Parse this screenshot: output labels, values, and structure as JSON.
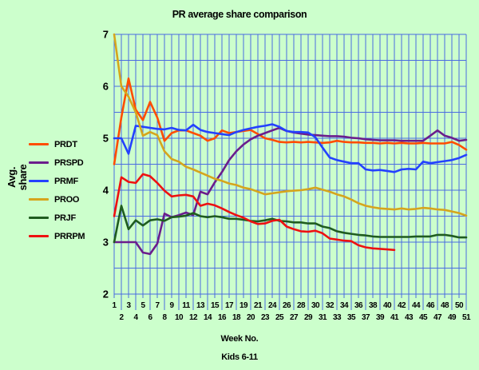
{
  "page": {
    "background": "#ccffcc"
  },
  "chart_data": {
    "type": "line",
    "title": "PR average share comparison",
    "xlabel": "Week No.",
    "ylabel": "Avg. share",
    "ylabel_lines": [
      "Avg.",
      "share"
    ],
    "caption": "Kids 6-11",
    "x_ticks": [
      1,
      2,
      3,
      4,
      5,
      6,
      7,
      8,
      9,
      10,
      11,
      12,
      13,
      14,
      15,
      16,
      17,
      18,
      19,
      20,
      21,
      23,
      24,
      25,
      26,
      27,
      28,
      29,
      30,
      31,
      32,
      33,
      34,
      35,
      36,
      37,
      38,
      39,
      40,
      41,
      42,
      43,
      44,
      45,
      46,
      47,
      48,
      49,
      50,
      51
    ],
    "x_note": "week 22 absent from axis; labels staggered in two rows",
    "y_ticks": [
      2,
      3,
      4,
      5,
      6,
      7
    ],
    "ylim": [
      2,
      7
    ],
    "y_minor_step": 0.5,
    "grid": "on",
    "grid_color": "#4a6be0",
    "text_color": "#000000",
    "legend_position": "left",
    "series": [
      {
        "name": "PRDT",
        "color": "#ff4d00",
        "values": [
          4.5,
          5.4,
          6.15,
          5.55,
          5.35,
          5.7,
          5.4,
          4.95,
          5.1,
          5.15,
          5.15,
          5.1,
          5.05,
          4.95,
          5.0,
          5.15,
          5.1,
          5.12,
          5.14,
          5.16,
          5.08,
          5.0,
          4.97,
          4.93,
          4.92,
          4.93,
          4.92,
          4.93,
          4.92,
          4.91,
          4.92,
          4.95,
          4.93,
          4.92,
          4.92,
          4.91,
          4.91,
          4.9,
          4.91,
          4.9,
          4.91,
          4.9,
          4.9,
          4.91,
          4.9,
          4.9,
          4.9,
          4.93,
          4.87,
          4.78
        ]
      },
      {
        "name": "PRSPD",
        "color": "#6b1d8c",
        "values": [
          3.0,
          3.0,
          3.0,
          3.0,
          2.8,
          2.77,
          2.97,
          3.55,
          3.48,
          3.52,
          3.57,
          3.52,
          3.97,
          3.92,
          4.15,
          4.35,
          4.58,
          4.75,
          4.88,
          4.98,
          5.05,
          5.1,
          5.15,
          5.2,
          5.14,
          5.11,
          5.09,
          5.07,
          5.06,
          5.05,
          5.04,
          5.04,
          5.03,
          5.01,
          5.0,
          4.98,
          4.97,
          4.96,
          4.96,
          4.96,
          4.95,
          4.95,
          4.95,
          4.95,
          5.05,
          5.15,
          5.05,
          5.01,
          4.95,
          4.97
        ]
      },
      {
        "name": "PRMF",
        "color": "#2441ff",
        "values": [
          5.0,
          5.0,
          4.7,
          5.24,
          5.22,
          5.2,
          5.18,
          5.17,
          5.2,
          5.16,
          5.15,
          5.26,
          5.16,
          5.12,
          5.1,
          5.08,
          5.06,
          5.12,
          5.16,
          5.19,
          5.22,
          5.24,
          5.27,
          5.22,
          5.14,
          5.12,
          5.12,
          5.11,
          5.02,
          4.82,
          4.63,
          4.58,
          4.55,
          4.52,
          4.52,
          4.4,
          4.38,
          4.39,
          4.37,
          4.35,
          4.4,
          4.41,
          4.4,
          4.55,
          4.52,
          4.54,
          4.56,
          4.58,
          4.62,
          4.68
        ]
      },
      {
        "name": "PROO",
        "color": "#d6a51c",
        "values": [
          7.0,
          6.0,
          5.8,
          5.5,
          5.05,
          5.12,
          5.06,
          4.75,
          4.6,
          4.55,
          4.45,
          4.4,
          4.34,
          4.28,
          4.22,
          4.18,
          4.13,
          4.1,
          4.05,
          4.02,
          3.97,
          3.92,
          3.94,
          3.96,
          3.98,
          3.99,
          4.0,
          4.02,
          4.05,
          4.01,
          3.97,
          3.92,
          3.88,
          3.82,
          3.75,
          3.7,
          3.67,
          3.65,
          3.64,
          3.63,
          3.65,
          3.63,
          3.64,
          3.66,
          3.65,
          3.63,
          3.62,
          3.59,
          3.56,
          3.51
        ]
      },
      {
        "name": "PRJF",
        "color": "#1f5c1f",
        "values": [
          3.0,
          3.7,
          3.25,
          3.42,
          3.32,
          3.42,
          3.44,
          3.41,
          3.48,
          3.49,
          3.51,
          3.56,
          3.5,
          3.48,
          3.5,
          3.48,
          3.45,
          3.45,
          3.43,
          3.41,
          3.4,
          3.42,
          3.45,
          3.41,
          3.4,
          3.38,
          3.38,
          3.36,
          3.36,
          3.3,
          3.27,
          3.21,
          3.18,
          3.16,
          3.14,
          3.13,
          3.11,
          3.1,
          3.1,
          3.1,
          3.1,
          3.1,
          3.11,
          3.11,
          3.11,
          3.14,
          3.14,
          3.12,
          3.09,
          3.09
        ]
      },
      {
        "name": "PRRPM",
        "color": "#ee1111",
        "values": [
          3.5,
          4.25,
          4.16,
          4.14,
          4.31,
          4.27,
          4.14,
          3.99,
          3.88,
          3.9,
          3.91,
          3.88,
          3.7,
          3.74,
          3.71,
          3.65,
          3.58,
          3.52,
          3.47,
          3.4,
          3.35,
          3.36,
          3.41,
          3.43,
          3.3,
          3.25,
          3.21,
          3.2,
          3.22,
          3.17,
          3.07,
          3.05,
          3.03,
          3.02,
          2.94,
          2.9,
          2.88,
          2.87,
          2.86,
          2.85,
          null,
          null,
          null,
          null,
          null,
          null,
          null,
          null,
          null,
          null
        ]
      }
    ]
  }
}
